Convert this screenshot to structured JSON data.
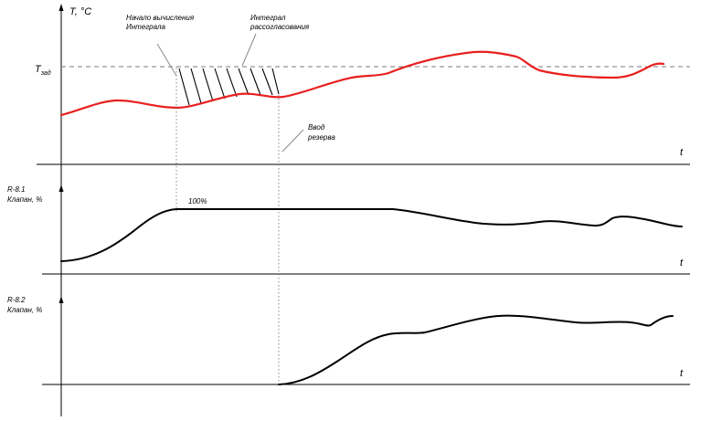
{
  "top_panel": {
    "y_axis_label": "T, °C",
    "setpoint_label": "T",
    "setpoint_subscript": "зад",
    "x_axis_label": "t",
    "annotation_start": [
      "Начало вычисления",
      "Интеграла"
    ],
    "annotation_integral": [
      "Интеграл",
      "рассогласования"
    ],
    "annotation_reserve": [
      "Ввод",
      "резерва"
    ],
    "curve_color": "#e8201f",
    "setpoint_line_color": "#7a7a7a"
  },
  "middle_panel": {
    "title": [
      "R-8.1",
      "Клапан, %"
    ],
    "value_label": "100%",
    "x_axis_label": "t",
    "curve_color": "#000000"
  },
  "bottom_panel": {
    "title": [
      "R-8.2",
      "Клапан, %"
    ],
    "x_axis_label": "t",
    "curve_color": "#000000"
  }
}
